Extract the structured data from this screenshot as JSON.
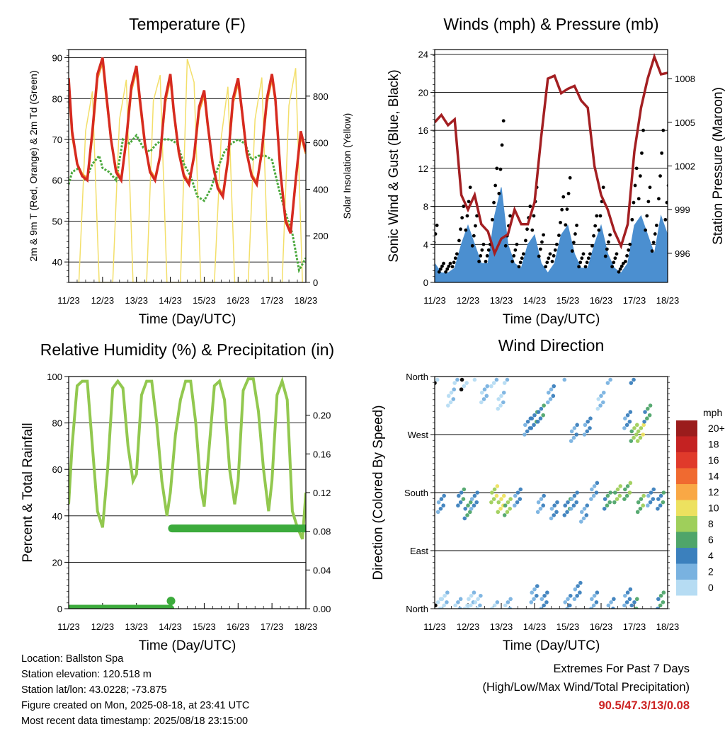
{
  "chart_data": [
    {
      "type": "line",
      "title": "Temperature (F)",
      "xlabel": "Time (Day/UTC)",
      "ylabel": "2m & 9m T (Red, Orange) & 2m Td (Green)",
      "y2label": "Solar Insolation (Yellow)",
      "x_ticks": [
        "11/23",
        "12/23",
        "13/23",
        "14/23",
        "15/23",
        "16/23",
        "17/23",
        "18/23"
      ],
      "ylim": [
        35,
        92
      ],
      "y_ticks": [
        "40",
        "50",
        "60",
        "70",
        "80",
        "90"
      ],
      "y2lim": [
        0,
        1000
      ],
      "y2_ticks": [
        "0",
        "200",
        "400",
        "600",
        "800"
      ],
      "grid": true,
      "colors": {
        "t2m": "#d62a20",
        "t9m": "#f59a2b",
        "td": "#4aa83c",
        "solar": "#f3df6a"
      },
      "series": [
        {
          "key": "t2m",
          "x": [
            0,
            0.1,
            0.25,
            0.4,
            0.55,
            0.7,
            0.85,
            1,
            1.1,
            1.25,
            1.4,
            1.55,
            1.7,
            1.85,
            2,
            2.1,
            2.25,
            2.4,
            2.55,
            2.7,
            2.85,
            3,
            3.1,
            3.25,
            3.4,
            3.55,
            3.7,
            3.85,
            4,
            4.1,
            4.25,
            4.4,
            4.55,
            4.7,
            4.85,
            5,
            5.1,
            5.25,
            5.4,
            5.55,
            5.7,
            5.85,
            6,
            6.1,
            6.25,
            6.4,
            6.55,
            6.7,
            6.85,
            7
          ],
          "values": [
            85,
            72,
            64,
            61,
            60,
            72,
            86,
            90,
            82,
            70,
            62,
            60,
            70,
            83,
            88,
            80,
            69,
            62,
            60,
            66,
            80,
            86,
            77,
            67,
            61,
            59,
            66,
            78,
            82,
            74,
            64,
            58,
            56,
            65,
            80,
            85,
            78,
            67,
            61,
            59,
            67,
            80,
            86,
            80,
            62,
            50,
            47,
            60,
            72,
            67
          ]
        },
        {
          "key": "t9m",
          "x": [
            0,
            0.1,
            0.25,
            0.4,
            0.55,
            0.7,
            0.85,
            1,
            1.1,
            1.25,
            1.4,
            1.55,
            1.7,
            1.85,
            2,
            2.1,
            2.25,
            2.4,
            2.55,
            2.7,
            2.85,
            3,
            3.1,
            3.25,
            3.4,
            3.55,
            3.7,
            3.85,
            4,
            4.1,
            4.25,
            4.4,
            4.55,
            4.7,
            4.85,
            5,
            5.1,
            5.25,
            5.4,
            5.55,
            5.7,
            5.85,
            6,
            6.1,
            6.25,
            6.4,
            6.55,
            6.7,
            6.85,
            7
          ],
          "values": [
            84,
            71,
            64,
            61.5,
            60.5,
            71,
            85,
            89,
            81,
            70,
            62.5,
            60.5,
            69.5,
            82,
            87,
            79,
            68.5,
            62.5,
            60.5,
            66,
            79,
            85,
            76.5,
            66.5,
            61.5,
            59.5,
            65.5,
            77,
            81,
            73.5,
            64,
            58.5,
            56.5,
            64.5,
            79,
            84,
            77.5,
            66.5,
            61.5,
            59.5,
            66.5,
            79,
            85,
            79.5,
            62,
            50.5,
            47.5,
            59.5,
            71,
            66.5
          ]
        },
        {
          "key": "td",
          "x": [
            0,
            0.1,
            0.3,
            0.5,
            0.7,
            0.9,
            1,
            1.2,
            1.4,
            1.6,
            1.8,
            2,
            2.2,
            2.4,
            2.6,
            2.8,
            3,
            3.2,
            3.4,
            3.6,
            3.8,
            4,
            4.2,
            4.4,
            4.6,
            4.8,
            5,
            5.2,
            5.4,
            5.6,
            5.8,
            6,
            6.2,
            6.4,
            6.6,
            6.8,
            7
          ],
          "values": [
            59,
            62,
            63,
            60,
            64,
            66,
            63,
            62,
            60,
            70,
            69,
            71,
            68,
            67,
            69,
            70,
            70,
            69,
            64,
            61,
            56,
            55,
            58,
            63,
            67,
            69,
            70,
            69,
            65,
            66,
            66,
            65,
            58,
            52,
            47,
            38,
            41
          ]
        },
        {
          "key": "solar",
          "x": [
            0.3,
            0.5,
            0.7,
            0.9,
            1.3,
            1.5,
            1.7,
            1.9,
            2.3,
            2.5,
            2.7,
            2.9,
            3.3,
            3.5,
            3.7,
            3.9,
            4.3,
            4.5,
            4.7,
            4.9,
            5.3,
            5.5,
            5.7,
            5.9,
            6.3,
            6.5,
            6.7,
            6.9
          ],
          "values": [
            0,
            650,
            820,
            0,
            0,
            700,
            870,
            0,
            0,
            780,
            890,
            0,
            0,
            960,
            860,
            0,
            0,
            620,
            840,
            0,
            0,
            700,
            880,
            0,
            0,
            760,
            920,
            0
          ]
        }
      ]
    },
    {
      "type": "line",
      "title": "Winds (mph) & Pressure (mb)",
      "xlabel": "Time (Day/UTC)",
      "ylabel": "Sonic Wind & Gust (Blue, Black)",
      "y2label": "Station Pressure (Maroon)",
      "x_ticks": [
        "11/23",
        "12/23",
        "13/23",
        "14/23",
        "15/23",
        "16/23",
        "17/23",
        "18/23"
      ],
      "ylim": [
        0,
        24.5
      ],
      "y_ticks": [
        "0",
        "4",
        "8",
        "12",
        "16",
        "20",
        "24"
      ],
      "y2lim": [
        994.0,
        1010.0
      ],
      "y2_ticks": [
        "996",
        "999",
        "1002",
        "1005",
        "1008"
      ],
      "grid": true,
      "colors": {
        "wind": "#4b8fd0",
        "gust": "#000000",
        "pressure": "#a31f22"
      },
      "series": [
        {
          "key": "wind",
          "x": [
            0,
            0.2,
            0.4,
            0.6,
            0.8,
            1,
            1.2,
            1.4,
            1.6,
            1.8,
            2,
            2.2,
            2.4,
            2.6,
            2.8,
            3,
            3.2,
            3.4,
            3.6,
            3.8,
            4,
            4.2,
            4.4,
            4.6,
            4.8,
            5,
            5.2,
            5.4,
            5.6,
            5.8,
            6,
            6.2,
            6.4,
            6.6,
            6.8,
            7
          ],
          "values": [
            2,
            1,
            1,
            1.5,
            4,
            6,
            4,
            2,
            2,
            7,
            10,
            4,
            2,
            1.5,
            4,
            5,
            2,
            1,
            2,
            5,
            6,
            3,
            1.5,
            1.5,
            4,
            6,
            3,
            1.5,
            1,
            2,
            6,
            7,
            5,
            3,
            7,
            5
          ]
        },
        {
          "key": "gust",
          "x": [
            0,
            0.2,
            0.4,
            0.6,
            0.8,
            1,
            1.2,
            1.4,
            1.6,
            1.8,
            2,
            2.2,
            2.4,
            2.6,
            2.8,
            3,
            3.2,
            3.4,
            3.6,
            3.8,
            4,
            4.2,
            4.4,
            4.6,
            4.8,
            5,
            5.2,
            5.4,
            5.6,
            5.8,
            6,
            6.2,
            6.4,
            6.6,
            6.8,
            7
          ],
          "values": [
            6,
            2,
            2,
            3,
            8,
            10,
            7,
            4,
            4,
            12,
            17,
            7,
            4,
            3,
            8,
            10,
            5,
            3,
            4,
            9,
            11,
            6,
            3,
            3,
            7,
            10,
            5,
            3,
            2,
            4,
            12,
            16,
            10,
            6,
            16,
            12
          ]
        },
        {
          "key": "pressure",
          "x": [
            0,
            0.2,
            0.4,
            0.6,
            0.8,
            1,
            1.2,
            1.4,
            1.6,
            1.8,
            2,
            2.2,
            2.4,
            2.6,
            2.8,
            3,
            3.2,
            3.4,
            3.6,
            3.8,
            4,
            4.2,
            4.4,
            4.6,
            4.8,
            5,
            5.2,
            5.4,
            5.6,
            5.8,
            6,
            6.2,
            6.4,
            6.6,
            6.8,
            7
          ],
          "values": [
            1005,
            1005.5,
            1004.8,
            1005.2,
            1000,
            999,
            1000,
            998,
            997.5,
            996,
            997,
            997.3,
            999,
            998,
            998,
            999.5,
            1004,
            1008,
            1008.2,
            1007,
            1007.3,
            1007.5,
            1006.5,
            1006,
            1002,
            1000,
            999,
            997.5,
            996.5,
            998,
            1003,
            1006,
            1008,
            1009.5,
            1008.3,
            1008.4
          ]
        }
      ]
    },
    {
      "type": "line",
      "title": "Relative Humidity (%) & Precipitation (in)",
      "xlabel": "Time (Day/UTC)",
      "ylabel": "Percent & Total Rainfall",
      "x_ticks": [
        "11/23",
        "12/23",
        "13/23",
        "14/23",
        "15/23",
        "16/23",
        "17/23",
        "18/23"
      ],
      "ylim": [
        0,
        100
      ],
      "y_ticks": [
        "0",
        "20",
        "40",
        "60",
        "80",
        "100"
      ],
      "y2lim": [
        0,
        0.24
      ],
      "y2_ticks": [
        "0.00",
        "0.04",
        "0.08",
        "0.12",
        "0.16",
        "0.20"
      ],
      "grid": true,
      "colors": {
        "rh": "#92c84f",
        "precip": "#3cab3c"
      },
      "series": [
        {
          "key": "rh",
          "x": [
            0,
            0.1,
            0.25,
            0.4,
            0.55,
            0.7,
            0.85,
            1,
            1.15,
            1.3,
            1.45,
            1.6,
            1.75,
            1.9,
            2,
            2.15,
            2.3,
            2.45,
            2.6,
            2.75,
            2.9,
            3,
            3.15,
            3.3,
            3.45,
            3.6,
            3.75,
            3.9,
            4,
            4.15,
            4.3,
            4.45,
            4.6,
            4.75,
            4.9,
            5,
            5.15,
            5.3,
            5.45,
            5.6,
            5.75,
            5.9,
            6,
            6.15,
            6.3,
            6.45,
            6.6,
            6.75,
            6.9,
            7
          ],
          "values": [
            45,
            70,
            96,
            98,
            98,
            70,
            42,
            35,
            60,
            95,
            98,
            95,
            70,
            55,
            58,
            92,
            98,
            98,
            80,
            55,
            40,
            50,
            75,
            90,
            98,
            98,
            80,
            52,
            44,
            70,
            96,
            98,
            90,
            60,
            45,
            55,
            94,
            99,
            99,
            85,
            60,
            42,
            55,
            92,
            98,
            90,
            42,
            35,
            30,
            50
          ]
        },
        {
          "key": "precip",
          "x": [
            0,
            1,
            2,
            3,
            3.05,
            4,
            5,
            6,
            7
          ],
          "values": [
            0,
            0,
            0,
            0.008,
            0.083,
            0.083,
            0.083,
            0.083,
            0.083
          ]
        }
      ]
    },
    {
      "type": "scatter",
      "title": "Wind Direction",
      "xlabel": "Time (Day/UTC)",
      "ylabel": "Direction (Colored By Speed)",
      "x_ticks": [
        "11/23",
        "12/23",
        "13/23",
        "14/23",
        "15/23",
        "16/23",
        "17/23",
        "18/23"
      ],
      "ylim": [
        0,
        360
      ],
      "y_ticks": [
        "North",
        "East",
        "South",
        "West",
        "North"
      ],
      "grid": true,
      "legend": {
        "title": "mph",
        "labels": [
          "20+",
          "18",
          "16",
          "14",
          "12",
          "10",
          "8",
          "6",
          "4",
          "2",
          "0"
        ],
        "colors": [
          "#9b1c1c",
          "#c42222",
          "#e03a2b",
          "#f06a30",
          "#f9a845",
          "#ede15f",
          "#9fcf5b",
          "#4fa56a",
          "#3b80bd",
          "#79b2e0",
          "#b6dcf3"
        ]
      },
      "series": [
        {
          "name": "north-quiet",
          "x": [
            0.1,
            0.3,
            0.5,
            0.7,
            0.9,
            1.1,
            1.3,
            1.5,
            1.8,
            2.0,
            2.2,
            3.0,
            3.3,
            3.5,
            4.0,
            4.3,
            4.8,
            5.0,
            5.3,
            5.8,
            6.0,
            6.8
          ],
          "values": [
            20,
            30,
            345,
            20,
            10,
            30,
            25,
            350,
            15,
            340,
            20,
            40,
            30,
            350,
            25,
            45,
            30,
            340,
            20,
            35,
            20,
            30
          ],
          "speeds": [
            0,
            1,
            1,
            2,
            0,
            1,
            1,
            2,
            1,
            1,
            2,
            3,
            4,
            3,
            3,
            4,
            3,
            2,
            3,
            4,
            5,
            6
          ]
        },
        {
          "name": "south-active",
          "x": [
            0.2,
            0.8,
            1.0,
            1.2,
            1.8,
            2.0,
            2.2,
            2.5,
            3.2,
            3.6,
            4.0,
            4.2,
            4.5,
            4.8,
            5.2,
            5.5,
            5.8,
            6.2,
            6.5,
            6.8
          ],
          "values": [
            180,
            190,
            170,
            185,
            195,
            180,
            175,
            190,
            180,
            170,
            175,
            185,
            165,
            200,
            185,
            195,
            200,
            180,
            190,
            185
          ],
          "speeds": [
            4,
            5,
            6,
            4,
            9,
            10,
            8,
            4,
            3,
            4,
            5,
            4,
            3,
            3,
            6,
            8,
            7,
            7,
            4,
            5
          ]
        },
        {
          "name": "west-nw",
          "x": [
            2.8,
            3.0,
            3.2,
            4.2,
            4.6,
            5.8,
            6.0,
            6.2,
            6.4
          ],
          "values": [
            300,
            310,
            320,
            290,
            300,
            310,
            290,
            290,
            320
          ],
          "speeds": [
            4,
            5,
            5,
            3,
            4,
            4,
            8,
            9,
            6
          ]
        }
      ]
    }
  ],
  "info": {
    "location": "Location: Ballston Spa",
    "elevation": "Station elevation: 120.518 m",
    "latlon": "Station lat/lon: 43.0228; -73.875",
    "created": "Figure created on Mon, 2025-08-18, at 23:41 UTC",
    "recent": "Most recent data timestamp: 2025/08/18 23:15:00"
  },
  "extremes": {
    "title": "Extremes For Past 7 Days",
    "subtitle": "(High/Low/Max Wind/Total Precipitation)",
    "values": "90.5/47.3/13/0.08"
  }
}
